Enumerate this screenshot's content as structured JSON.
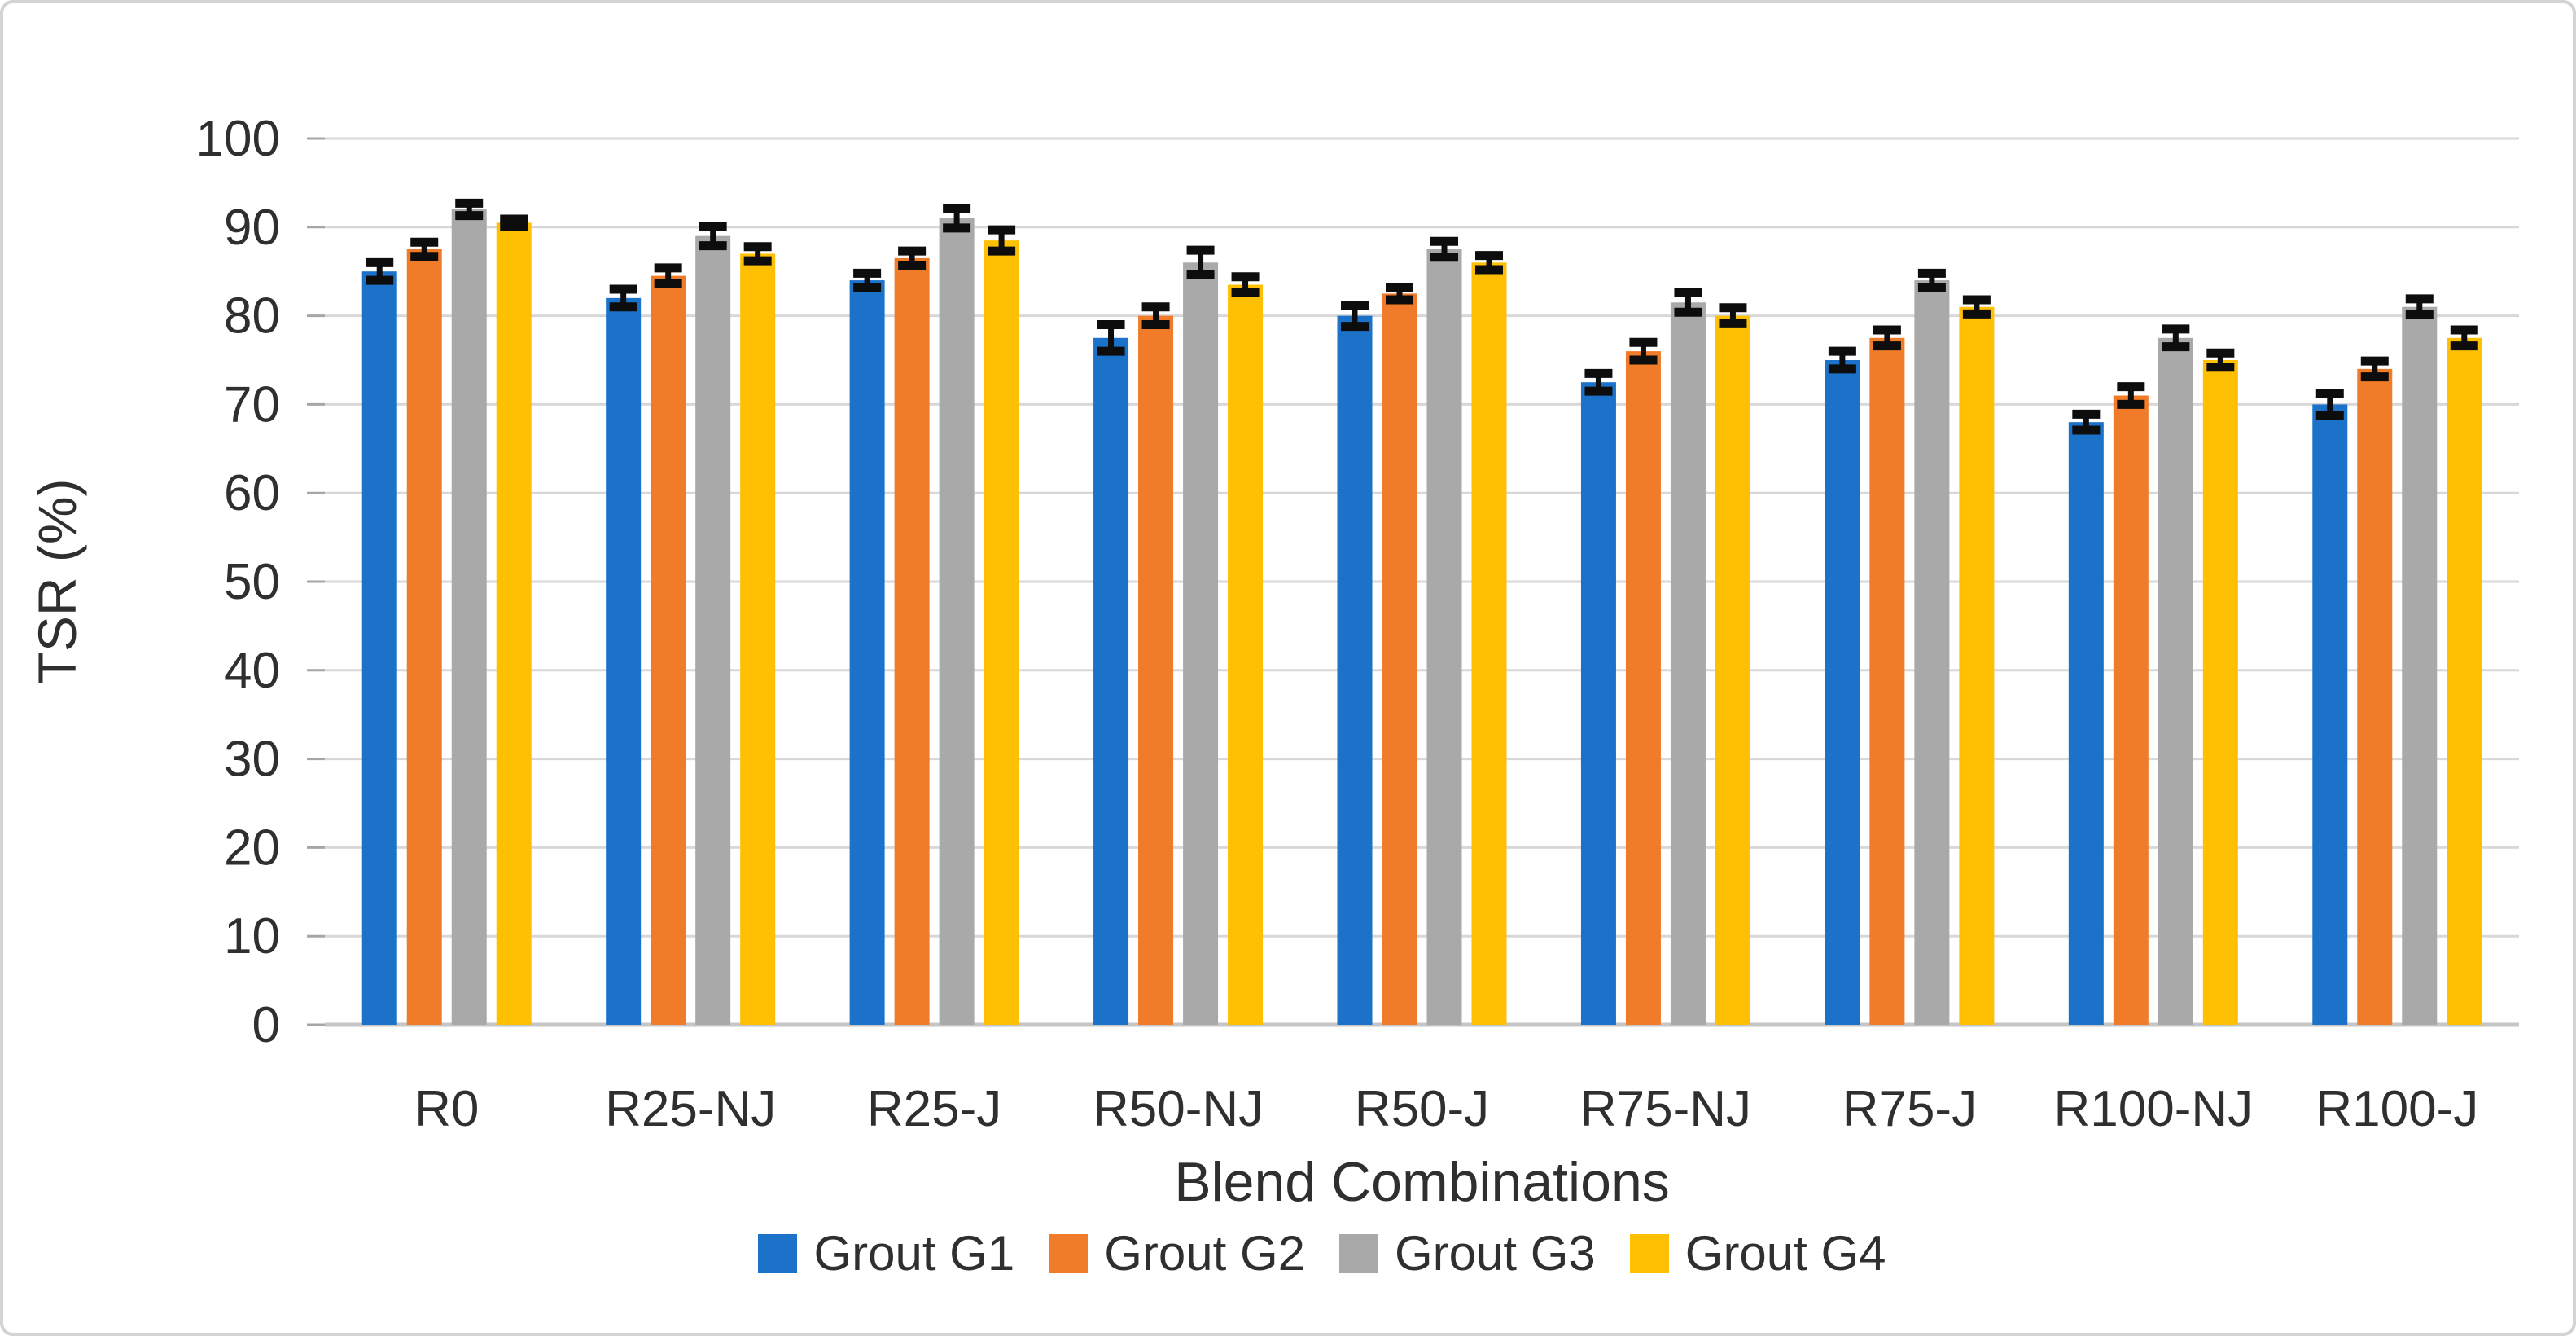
{
  "figure": {
    "background": "#ffffff",
    "border_color": "#d4d4d4"
  },
  "chart_data": {
    "type": "bar",
    "title": "",
    "xlabel": "Blend Combinations",
    "ylabel": "TSR (%)",
    "categories": [
      "R0",
      "R25-NJ",
      "R25-J",
      "R50-NJ",
      "R50-J",
      "R75-NJ",
      "R75-J",
      "R100-NJ",
      "R100-J"
    ],
    "series": [
      {
        "name": "Grout G1",
        "color": "#1C72C8",
        "values": [
          85,
          82,
          84,
          77.5,
          80,
          72.5,
          75,
          68,
          70
        ],
        "errors": [
          1.0,
          1.0,
          0.8,
          1.5,
          1.2,
          1.0,
          1.0,
          0.9,
          1.2
        ]
      },
      {
        "name": "Grout G2",
        "color": "#F07B28",
        "values": [
          87.5,
          84.5,
          86.5,
          80,
          82.5,
          76,
          77.5,
          71,
          74
        ],
        "errors": [
          0.8,
          0.9,
          0.8,
          1.0,
          0.7,
          1.0,
          0.9,
          1.0,
          0.9
        ]
      },
      {
        "name": "Grout G3",
        "color": "#A9A9A9",
        "values": [
          92,
          89,
          91,
          86,
          87.5,
          81.5,
          84,
          77.5,
          81
        ],
        "errors": [
          0.7,
          1.1,
          1.1,
          1.4,
          0.9,
          1.1,
          0.8,
          1.0,
          0.9
        ]
      },
      {
        "name": "Grout G4",
        "color": "#FFC003",
        "values": [
          90.5,
          87,
          88.5,
          83.5,
          86,
          80,
          81,
          75,
          77.5
        ],
        "errors": [
          0.4,
          0.8,
          1.2,
          0.9,
          0.8,
          0.9,
          0.8,
          0.8,
          0.9
        ]
      }
    ],
    "ylim": [
      0,
      100
    ],
    "yticks": [
      0,
      10,
      20,
      30,
      40,
      50,
      60,
      70,
      80,
      90,
      100
    ],
    "grid": true,
    "error_bars": true,
    "legend_position": "bottom",
    "gridline_color": "#d8d8d8",
    "baseline_color": "#c6c6c6",
    "tick_color": "#a6a6a6",
    "error_bar_color": "#0d0d0d"
  }
}
